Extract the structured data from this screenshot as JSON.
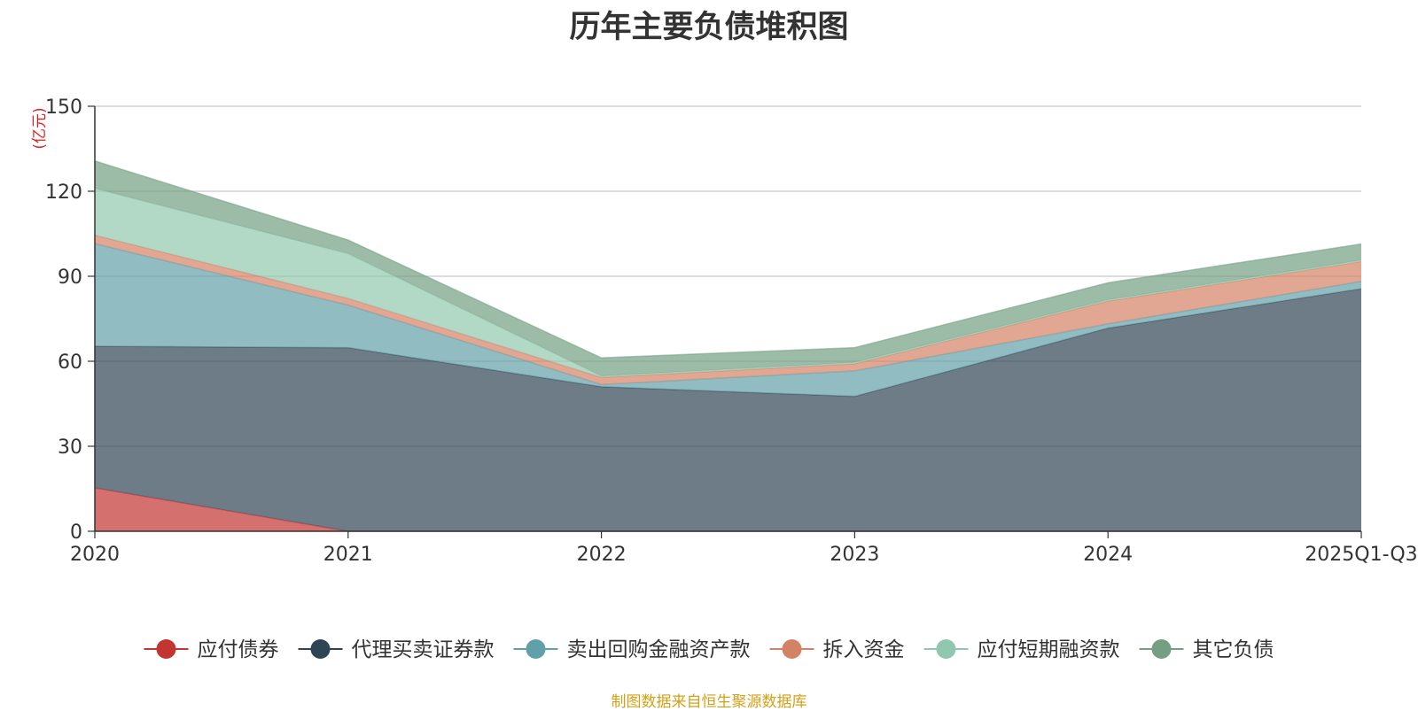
{
  "chart_data": {
    "type": "area",
    "title": "历年主要负债堆积图",
    "unit_label": "(亿元)",
    "categories": [
      "2020",
      "2021",
      "2022",
      "2023",
      "2024",
      "2025Q1-Q3"
    ],
    "ylim": [
      0,
      150
    ],
    "yticks": [
      0,
      30,
      60,
      90,
      120,
      150
    ],
    "stacked": true,
    "grid": true,
    "legend_position": "bottom",
    "series": [
      {
        "name": "应付债券",
        "color": "#c23531",
        "values": [
          15.3,
          0,
          0,
          0,
          0,
          0
        ]
      },
      {
        "name": "代理买卖证券款",
        "color": "#2f4554",
        "values": [
          50.0,
          64.8,
          51.0,
          47.6,
          71.7,
          85.6
        ]
      },
      {
        "name": "卖出回购金融资产款",
        "color": "#61a0a8",
        "values": [
          36.2,
          15.0,
          0.8,
          9.0,
          1.5,
          2.6
        ]
      },
      {
        "name": "拆入资金",
        "color": "#d48265",
        "values": [
          3.0,
          2.4,
          2.5,
          2.5,
          8.0,
          7.0
        ]
      },
      {
        "name": "应付短期融资款",
        "color": "#91c7ae",
        "values": [
          16.5,
          15.8,
          0.5,
          0.5,
          0.5,
          0.5
        ]
      },
      {
        "name": "其它负债",
        "color": "#749f83",
        "values": [
          9.7,
          4.8,
          6.4,
          5.2,
          6.0,
          5.7
        ]
      }
    ]
  },
  "source_note": "制图数据来自恒生聚源数据库"
}
